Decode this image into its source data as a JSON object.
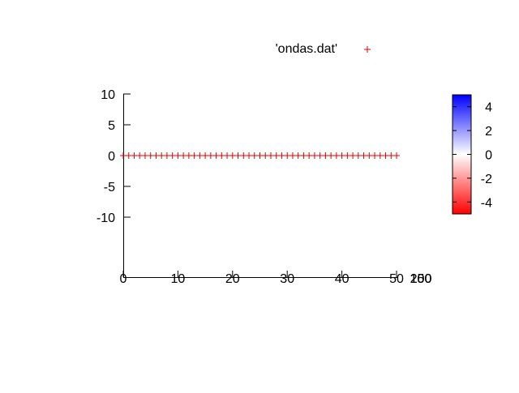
{
  "chart_data": {
    "type": "scatter",
    "title": "",
    "xlabel": "",
    "ylabel": "",
    "x_ticks": [
      "0",
      "10",
      "20",
      "30",
      "40",
      "50"
    ],
    "x_overlap_ticks": [
      "100",
      "150",
      "200"
    ],
    "y_ticks": [
      "10",
      "5",
      "0",
      "-5",
      "-10"
    ],
    "xlim": [
      0,
      50
    ],
    "ylim": [
      -10,
      10
    ],
    "grid": false,
    "legend_position": "top-right",
    "series": [
      {
        "name": "'ondas.dat'",
        "marker": "+",
        "color": "#e00000",
        "x": [
          0,
          1,
          2,
          3,
          4,
          5,
          6,
          7,
          8,
          9,
          10,
          11,
          12,
          13,
          14,
          15,
          16,
          17,
          18,
          19,
          20,
          21,
          22,
          23,
          24,
          25,
          26,
          27,
          28,
          29,
          30,
          31,
          32,
          33,
          34,
          35,
          36,
          37,
          38,
          39,
          40,
          41,
          42,
          43,
          44,
          45,
          46,
          47,
          48,
          49,
          50
        ],
        "y": [
          0,
          0,
          0,
          0,
          0,
          0,
          0,
          0,
          0,
          0,
          0,
          0,
          0,
          0,
          0,
          0,
          0,
          0,
          0,
          0,
          0,
          0,
          0,
          0,
          0,
          0,
          0,
          0,
          0,
          0,
          0,
          0,
          0,
          0,
          0,
          0,
          0,
          0,
          0,
          0,
          0,
          0,
          0,
          0,
          0,
          0,
          0,
          0,
          0,
          0,
          0
        ]
      }
    ],
    "colorbar": {
      "ticks": [
        "4",
        "2",
        "0",
        "-2",
        "-4"
      ],
      "range": [
        -5,
        5
      ],
      "colors": [
        "#ff0000",
        "#ffffff",
        "#0000ff"
      ]
    }
  }
}
